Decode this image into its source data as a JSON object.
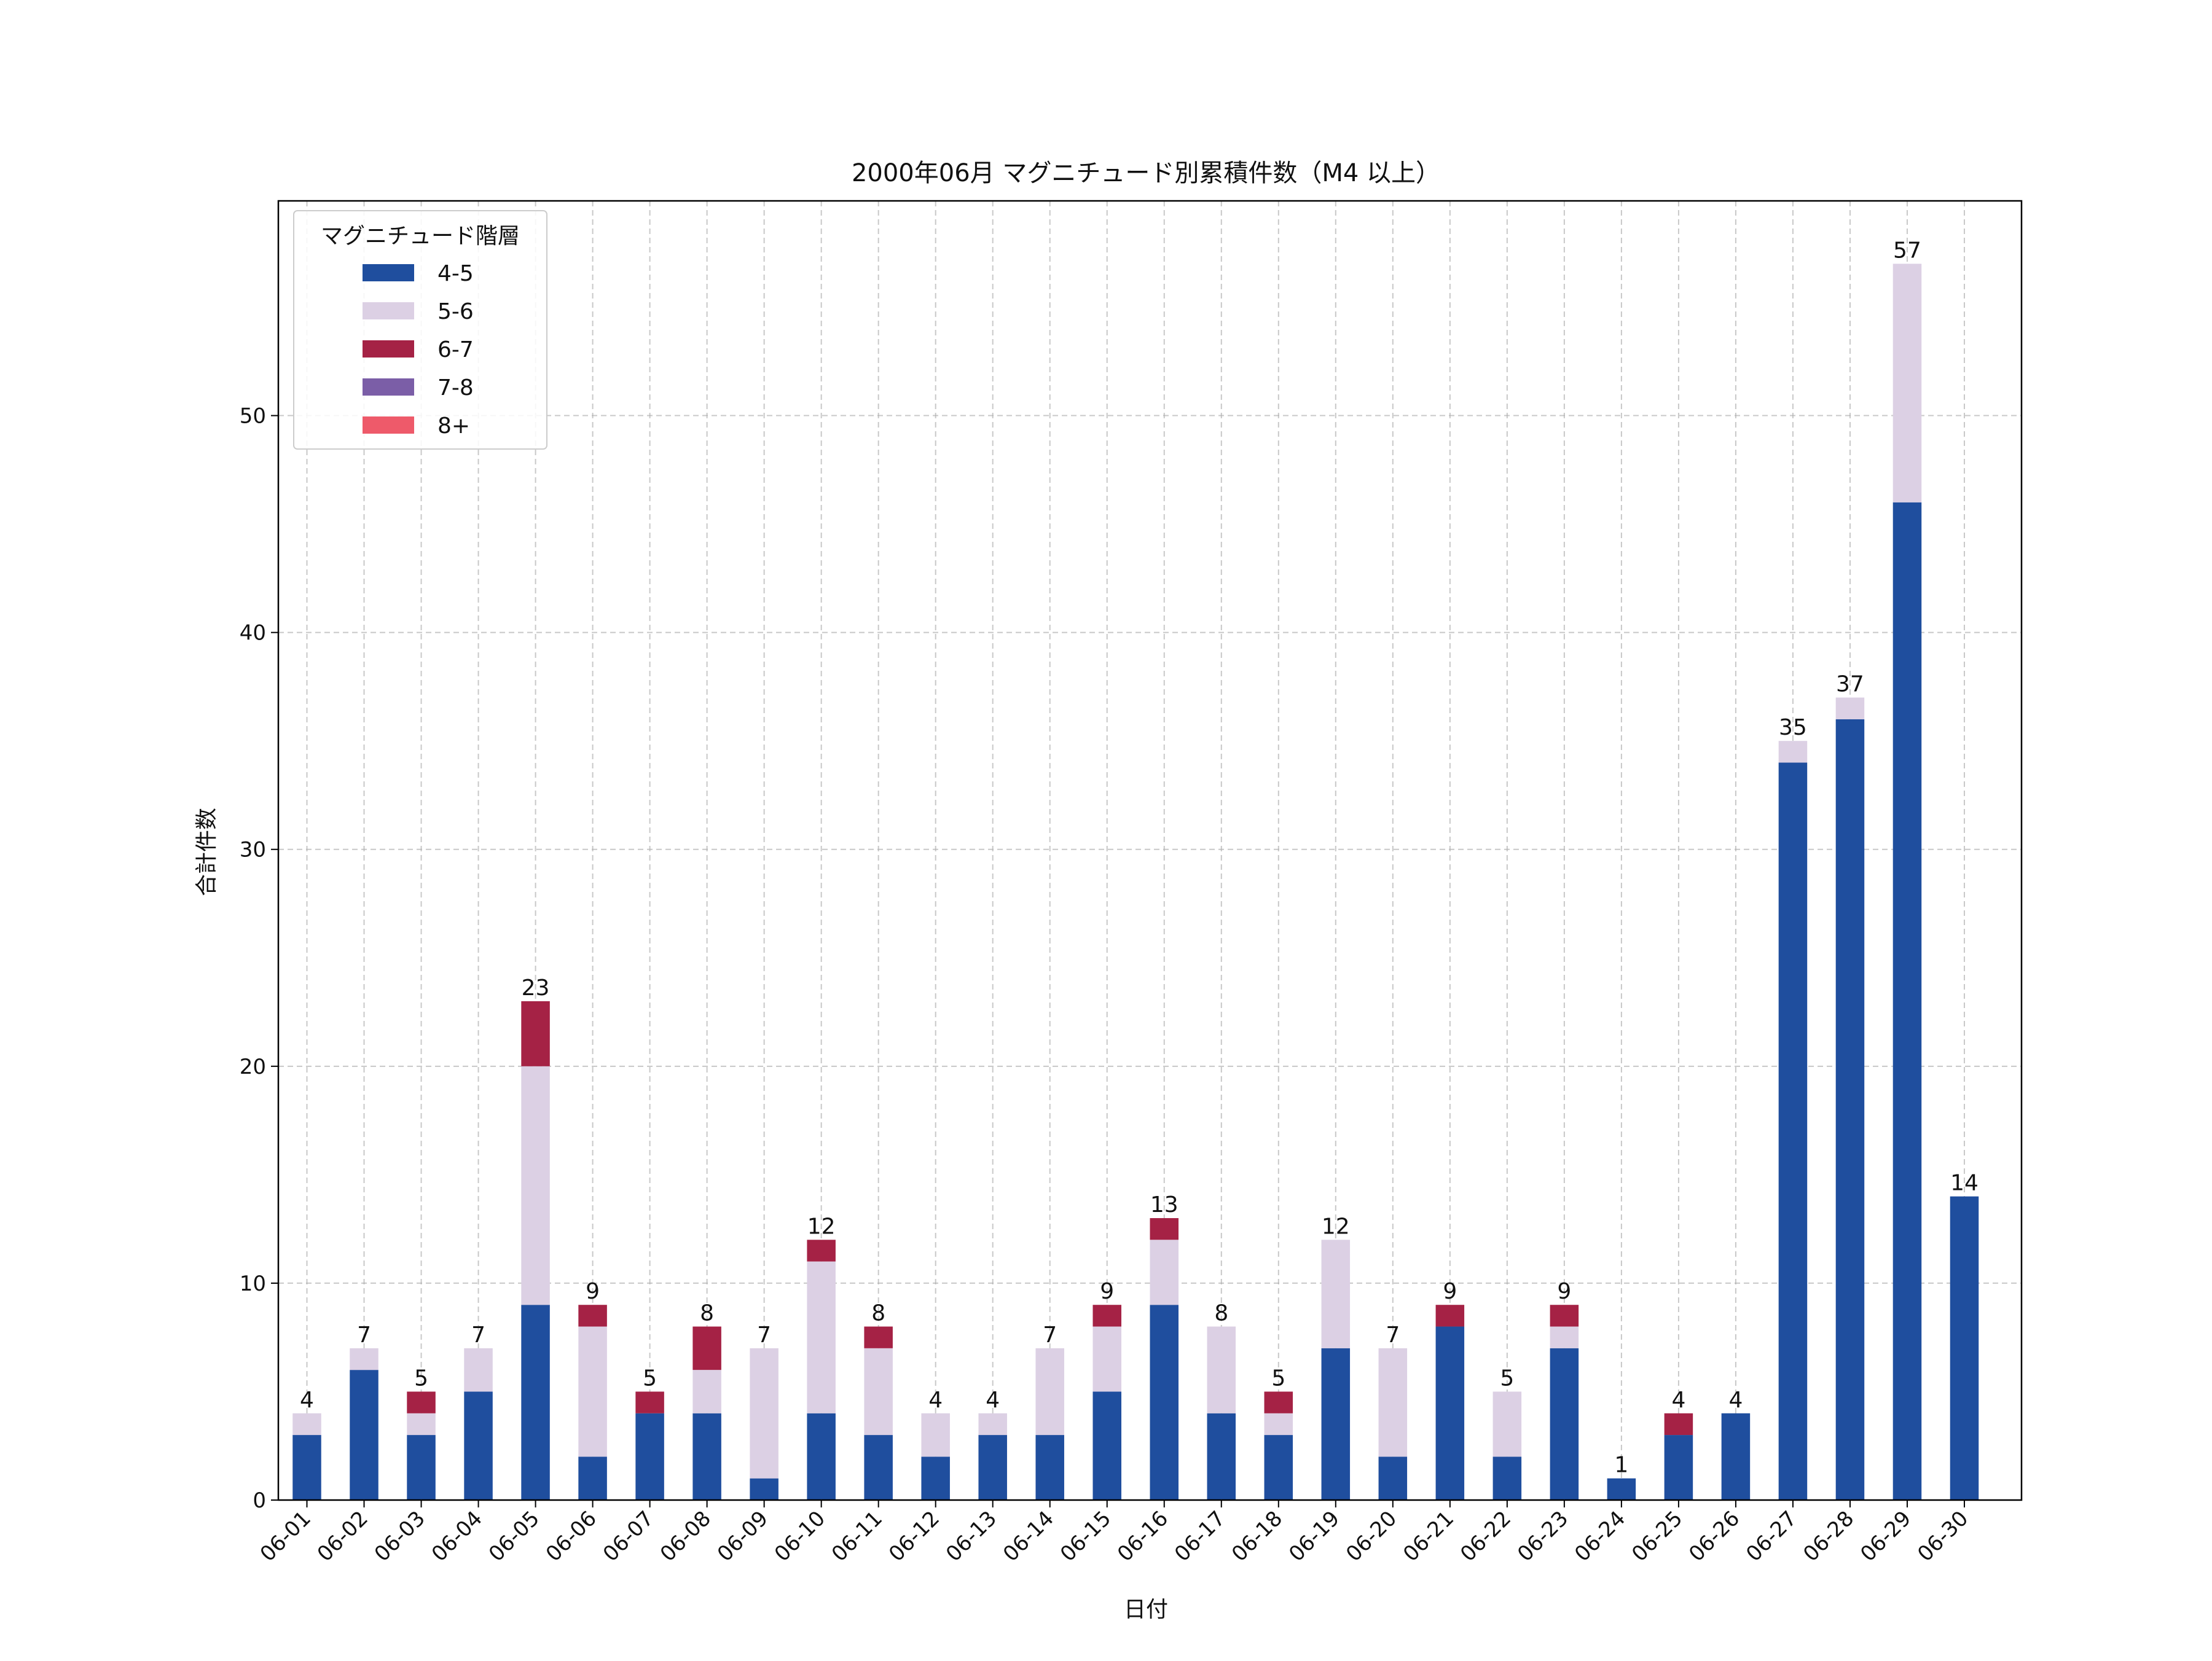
{
  "chart_data": {
    "type": "bar",
    "stacked": true,
    "title": "2000年06月 マグニチュード別累積件数（M4 以上）",
    "xlabel": "日付",
    "ylabel": "合計件数",
    "ylim": [
      0,
      59.9
    ],
    "yticks": [
      0,
      10,
      20,
      30,
      40,
      50
    ],
    "grid": true,
    "legend_title": "マグニチュード階層",
    "legend_position": "upper-left",
    "categories": [
      "06-01",
      "06-02",
      "06-03",
      "06-04",
      "06-05",
      "06-06",
      "06-07",
      "06-08",
      "06-09",
      "06-10",
      "06-11",
      "06-12",
      "06-13",
      "06-14",
      "06-15",
      "06-16",
      "06-17",
      "06-18",
      "06-19",
      "06-20",
      "06-21",
      "06-22",
      "06-23",
      "06-24",
      "06-25",
      "06-26",
      "06-27",
      "06-28",
      "06-29",
      "06-30"
    ],
    "series": [
      {
        "name": "4-5",
        "color": "#1f4e9e",
        "values": [
          3,
          6,
          3,
          5,
          9,
          2,
          4,
          4,
          1,
          4,
          3,
          2,
          3,
          3,
          5,
          9,
          4,
          3,
          7,
          2,
          8,
          2,
          7,
          1,
          3,
          4,
          34,
          36,
          46,
          14
        ]
      },
      {
        "name": "5-6",
        "color": "#dcd0e4",
        "values": [
          1,
          1,
          1,
          2,
          11,
          6,
          0,
          2,
          6,
          7,
          4,
          2,
          1,
          4,
          3,
          3,
          4,
          1,
          5,
          5,
          0,
          3,
          1,
          0,
          0,
          0,
          1,
          1,
          11,
          0
        ]
      },
      {
        "name": "6-7",
        "color": "#a52245",
        "values": [
          0,
          0,
          1,
          0,
          3,
          1,
          1,
          2,
          0,
          1,
          1,
          0,
          0,
          0,
          1,
          1,
          0,
          1,
          0,
          0,
          1,
          0,
          1,
          0,
          1,
          0,
          0,
          0,
          0,
          0
        ]
      },
      {
        "name": "7-8",
        "color": "#7b5ea7",
        "values": [
          0,
          0,
          0,
          0,
          0,
          0,
          0,
          0,
          0,
          0,
          0,
          0,
          0,
          0,
          0,
          0,
          0,
          0,
          0,
          0,
          0,
          0,
          0,
          0,
          0,
          0,
          0,
          0,
          0,
          0
        ]
      },
      {
        "name": "8+",
        "color": "#ee5a6a",
        "values": [
          0,
          0,
          0,
          0,
          0,
          0,
          0,
          0,
          0,
          0,
          0,
          0,
          0,
          0,
          0,
          0,
          0,
          0,
          0,
          0,
          0,
          0,
          0,
          0,
          0,
          0,
          0,
          0,
          0,
          0
        ]
      }
    ],
    "totals": [
      4,
      7,
      5,
      7,
      23,
      9,
      5,
      8,
      7,
      12,
      8,
      4,
      4,
      7,
      9,
      13,
      8,
      5,
      12,
      7,
      9,
      5,
      9,
      1,
      4,
      4,
      35,
      37,
      57,
      14
    ]
  }
}
